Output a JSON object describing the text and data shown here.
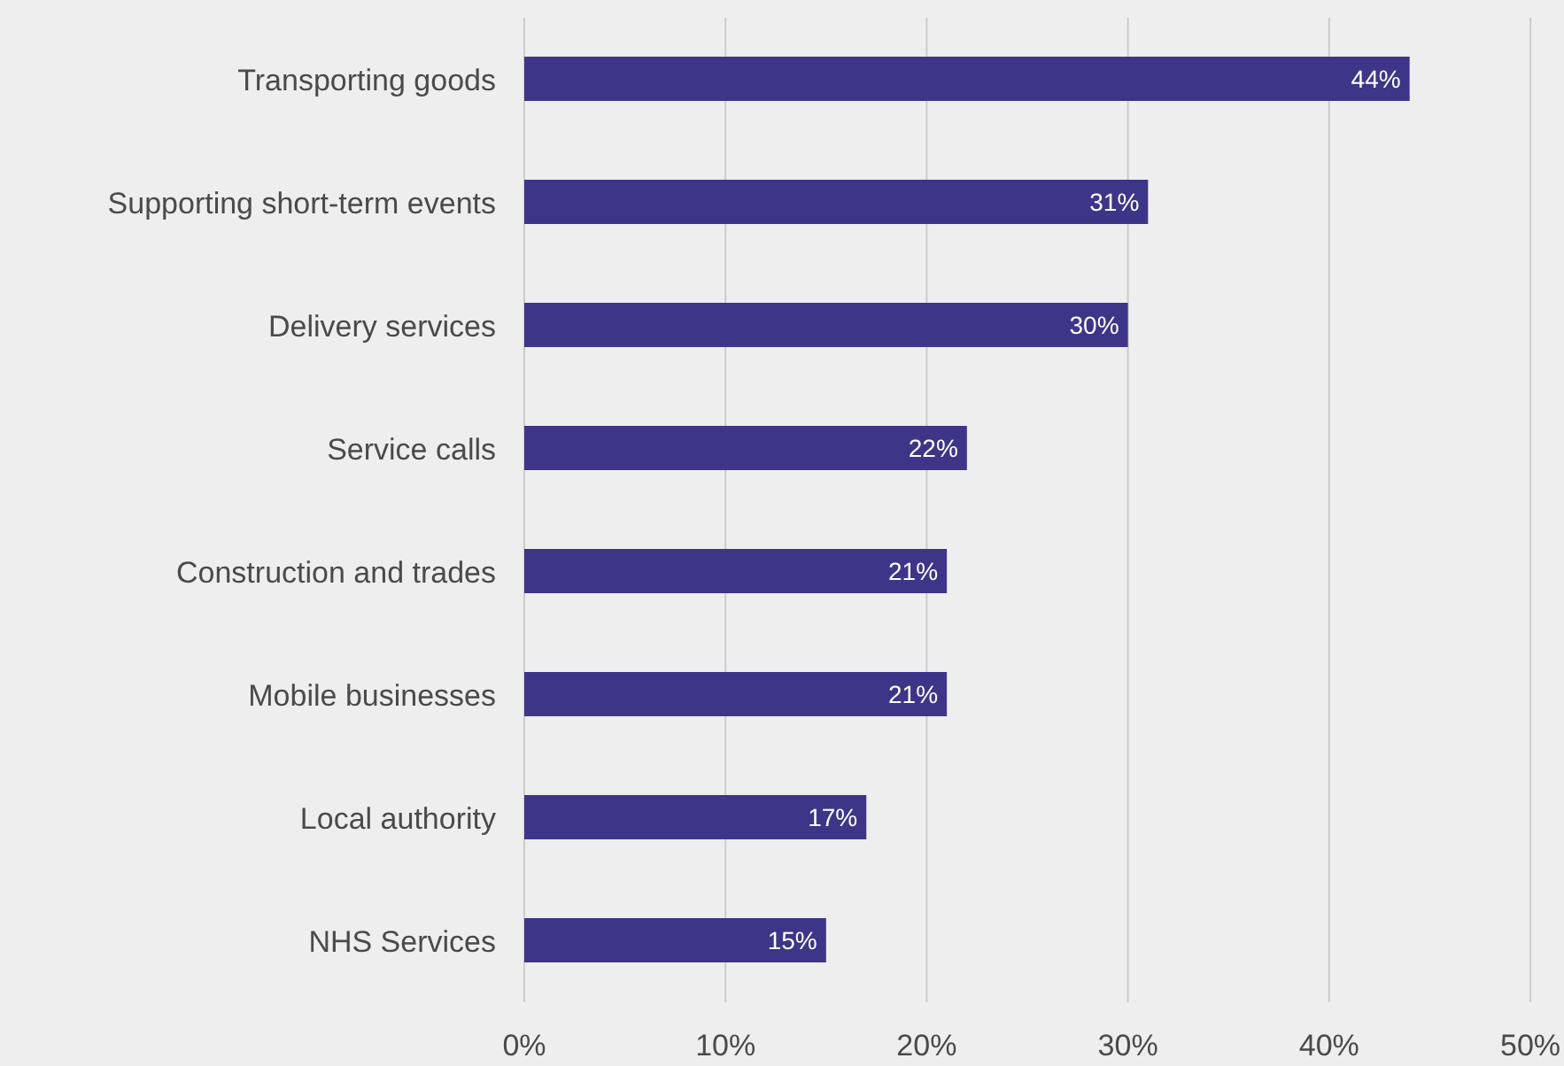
{
  "chart_data": {
    "type": "bar",
    "orientation": "horizontal",
    "categories": [
      "Transporting goods",
      "Supporting short-term events",
      "Delivery services",
      "Service calls",
      "Construction and trades",
      "Mobile businesses",
      "Local authority",
      "NHS Services"
    ],
    "values": [
      44,
      31,
      30,
      22,
      21,
      21,
      17,
      15
    ],
    "value_labels": [
      "44%",
      "31%",
      "30%",
      "22%",
      "21%",
      "21%",
      "17%",
      "15%"
    ],
    "color": "#3d3587",
    "xlim": [
      0,
      50
    ],
    "xticks": [
      {
        "value": 0,
        "label": "0%"
      },
      {
        "value": 10,
        "label": "10%"
      },
      {
        "value": 20,
        "label": "20%"
      },
      {
        "value": 30,
        "label": "30%"
      },
      {
        "value": 40,
        "label": "40%"
      },
      {
        "value": 50,
        "label": "50%"
      }
    ],
    "grid": "x"
  }
}
